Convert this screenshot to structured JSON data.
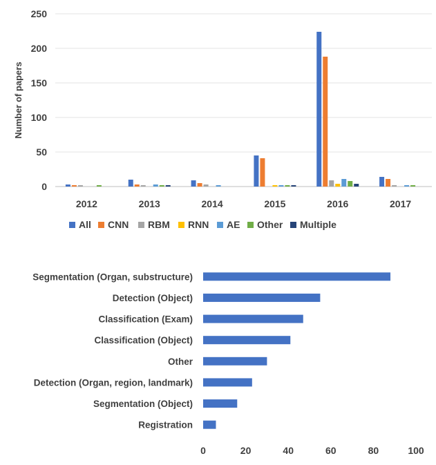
{
  "chart_data": [
    {
      "type": "bar",
      "title": "",
      "xlabel": "",
      "ylabel": "Number of papers",
      "ylim": [
        0,
        250
      ],
      "yticks": [
        0,
        50,
        100,
        150,
        200,
        250
      ],
      "grid": true,
      "legend": "bottom",
      "categories": [
        "2012",
        "2013",
        "2014",
        "2015",
        "2016",
        "2017"
      ],
      "series": [
        {
          "name": "All",
          "color": "#4472c4",
          "values": [
            3,
            10,
            9,
            45,
            224,
            14
          ]
        },
        {
          "name": "CNN",
          "color": "#ed7d31",
          "values": [
            2,
            3,
            5,
            41,
            188,
            11
          ]
        },
        {
          "name": "RBM",
          "color": "#a5a5a5",
          "values": [
            2,
            2,
            3,
            0,
            9,
            2
          ]
        },
        {
          "name": "RNN",
          "color": "#ffc000",
          "values": [
            0,
            0,
            0,
            2,
            4,
            0
          ]
        },
        {
          "name": "AE",
          "color": "#5b9bd5",
          "values": [
            0,
            3,
            2,
            2,
            11,
            2
          ]
        },
        {
          "name": "Other",
          "color": "#70ad47",
          "values": [
            2,
            2,
            0,
            2,
            8,
            2
          ]
        },
        {
          "name": "Multiple",
          "color": "#264478",
          "values": [
            0,
            2,
            0,
            2,
            4,
            0
          ]
        }
      ]
    },
    {
      "type": "bar",
      "orientation": "horizontal",
      "title": "",
      "xlabel": "",
      "ylabel": "",
      "xlim": [
        0,
        100
      ],
      "xticks": [
        0,
        20,
        40,
        60,
        80,
        100
      ],
      "grid": false,
      "color": "#4472c4",
      "categories": [
        "Segmentation (Organ, substructure)",
        "Detection (Object)",
        "Classification (Exam)",
        "Classification (Object)",
        "Other",
        "Detection (Organ, region, landmark)",
        "Segmentation (Object)",
        "Registration"
      ],
      "values": [
        88,
        55,
        47,
        41,
        30,
        23,
        16,
        6
      ]
    }
  ]
}
